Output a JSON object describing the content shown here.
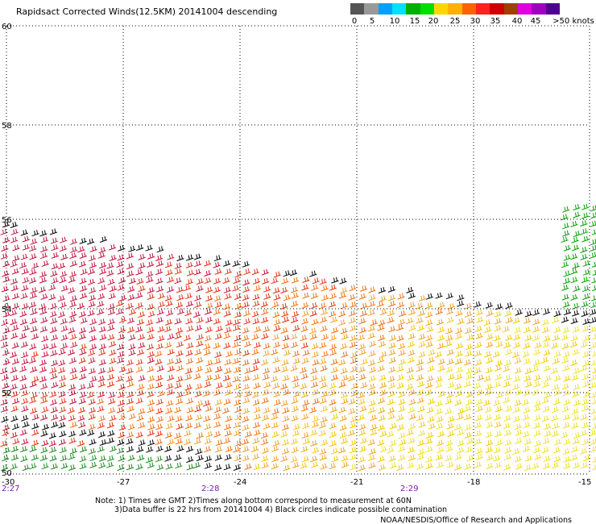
{
  "title": "Rapidsact Corrected Winds(12.5KM) 20141004 descending",
  "legend": {
    "colors": [
      "#555555",
      "#999999",
      "#00a0ff",
      "#00e0ff",
      "#00b000",
      "#00e000",
      "#ffd700",
      "#ffb000",
      "#ff6000",
      "#ff2020",
      "#d00000",
      "#a04000",
      "#e000e0",
      "#a000c0",
      "#500090"
    ],
    "labels": [
      "0",
      "5",
      "10",
      "15",
      "20",
      "25",
      "30",
      "35",
      "40",
      "45",
      ">50 knots"
    ]
  },
  "axes": {
    "lat_labels": [
      "60",
      "58",
      "56",
      "54",
      "52",
      "50"
    ],
    "lon_labels": [
      "-30",
      "-27",
      "-24",
      "-21",
      "-18",
      "-15"
    ],
    "time_labels": [
      "2:27",
      "2:28",
      "2:29"
    ]
  },
  "notes": {
    "line1": "Note: 1) Times are GMT 2)Times along bottom correspond to measurement at 60N",
    "line2": "3)Data buffer is 22 hrs from 20141004 4) Black circles indicate possible contamination",
    "credit": "NOAA/NESDIS/Office of Research and Applications"
  }
}
